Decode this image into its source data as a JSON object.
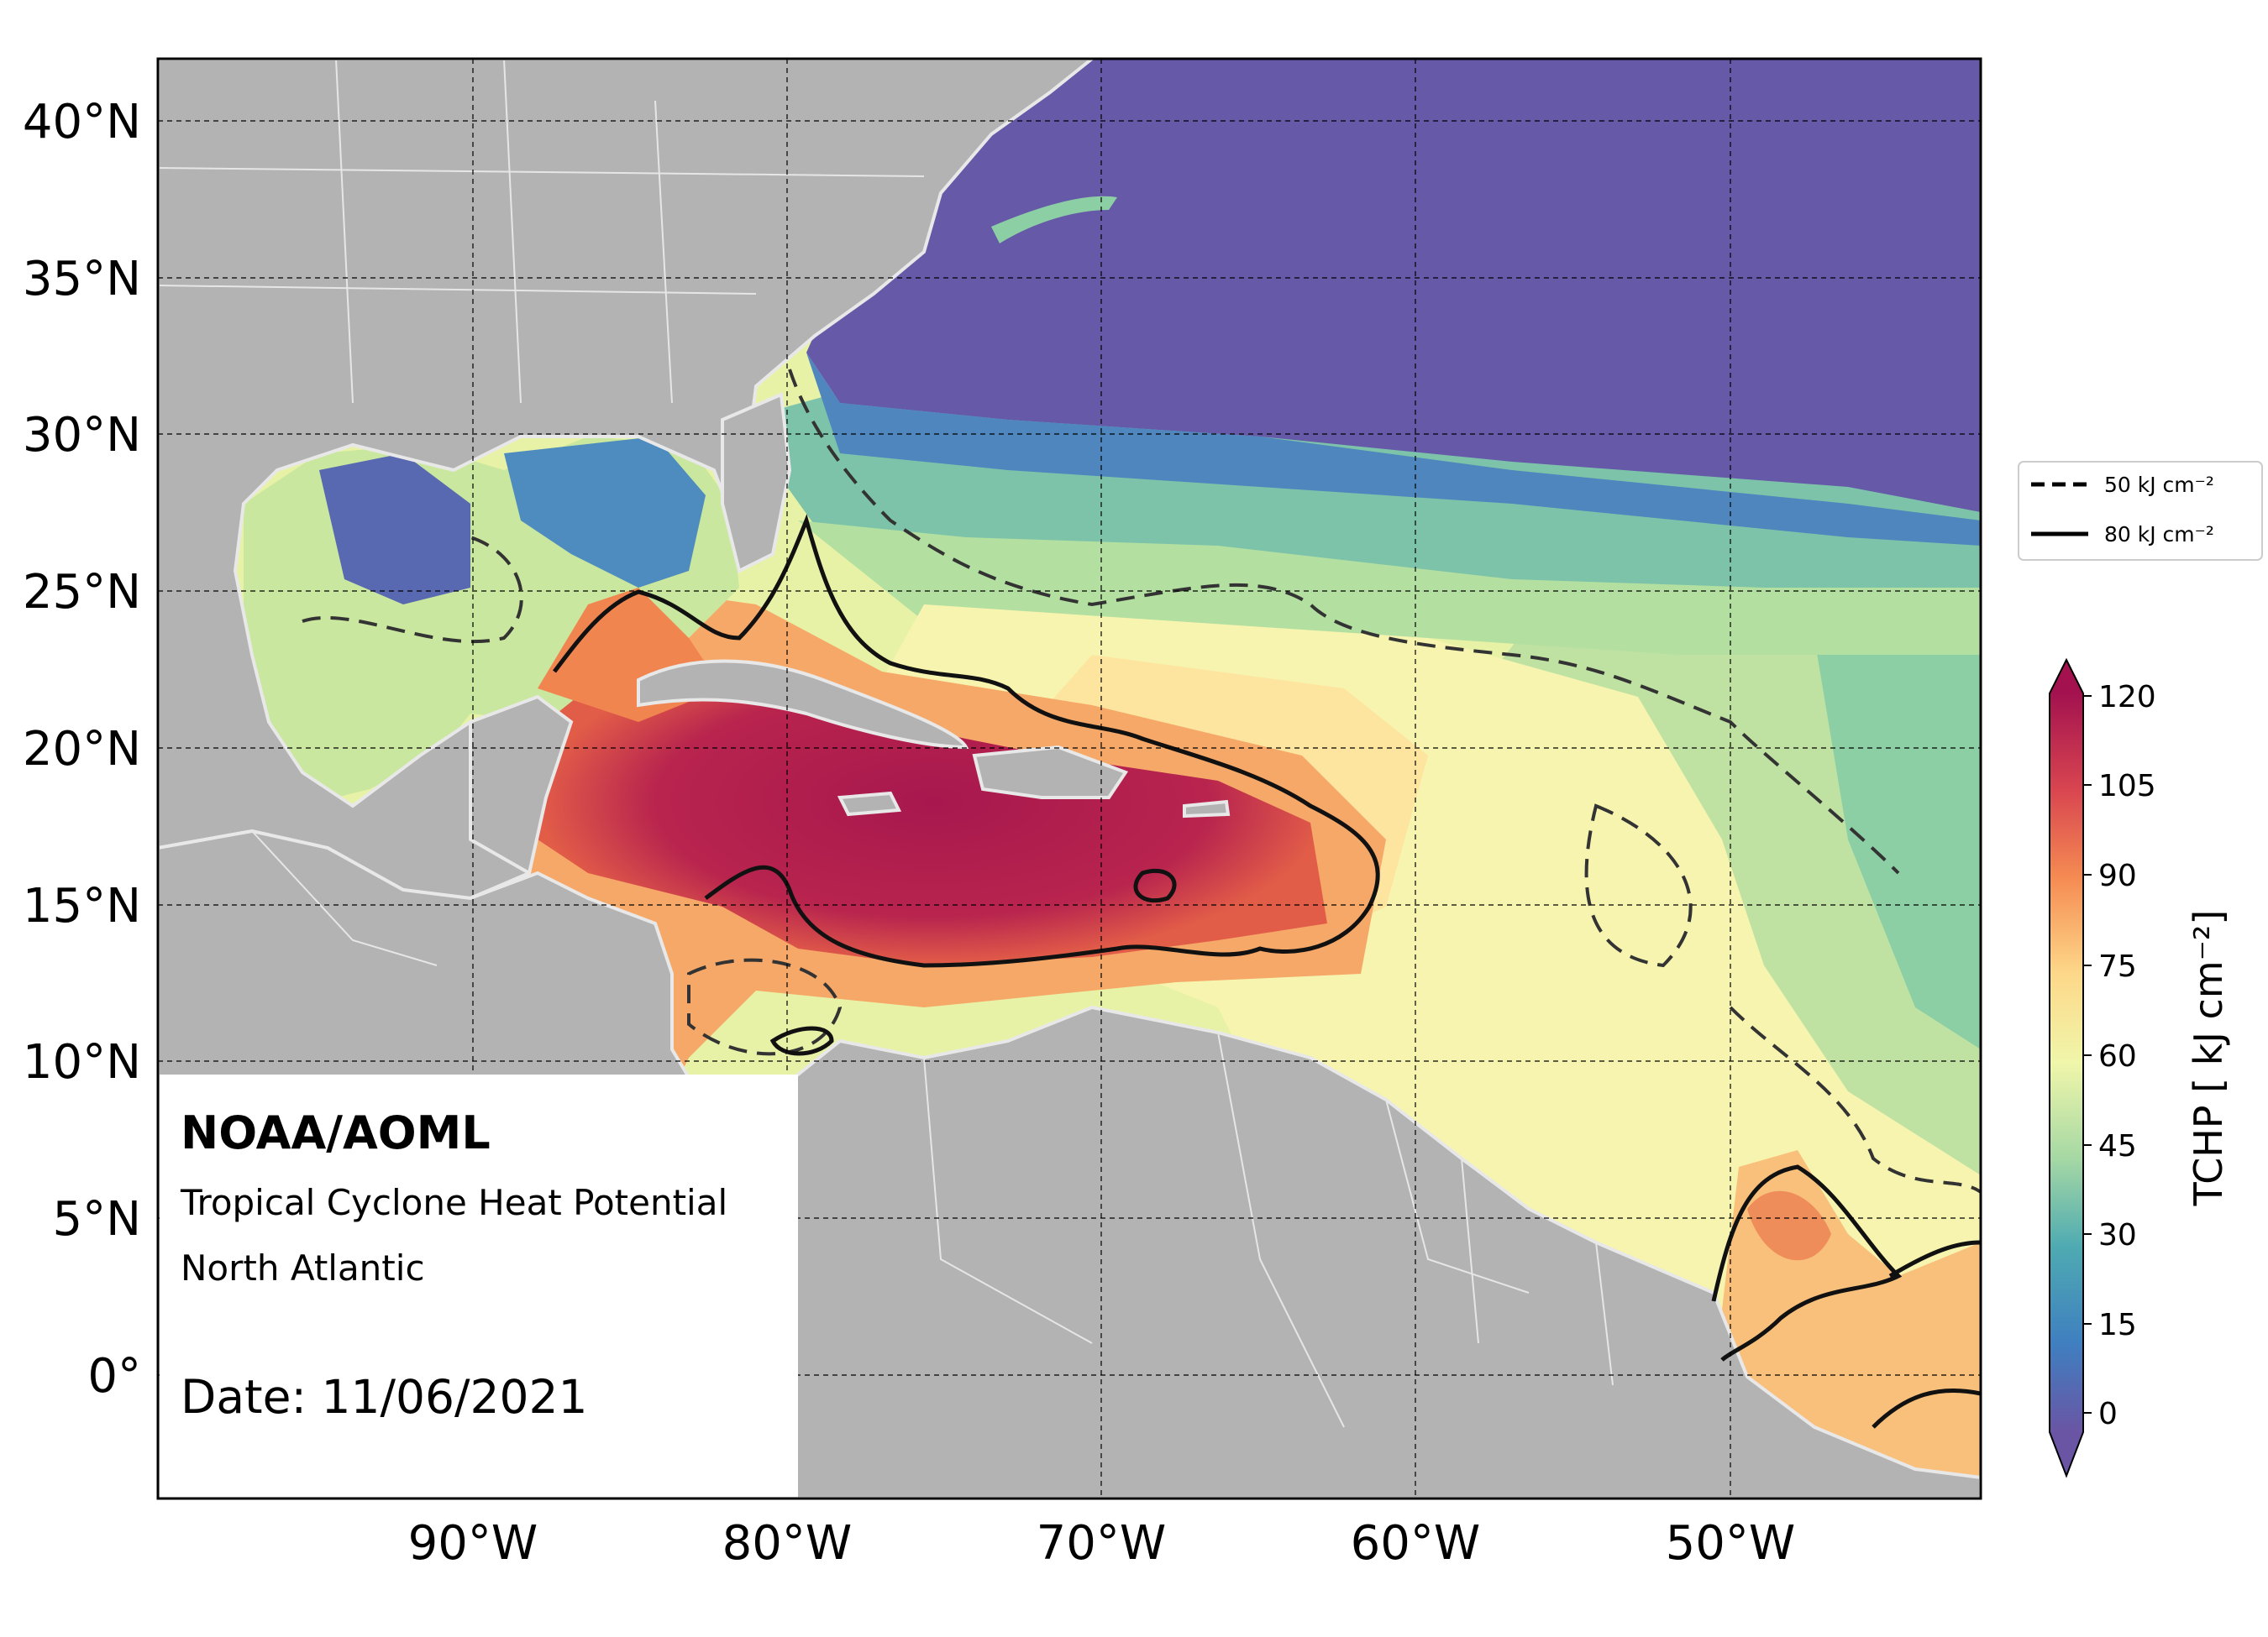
{
  "annotations": {
    "organization": "NOAA/AOML",
    "product": "Tropical Cyclone Heat Potential",
    "region": "North Atlantic",
    "date": "Date: 11/06/2021"
  },
  "axes": {
    "lat_ticks": [
      "40°N",
      "35°N",
      "30°N",
      "25°N",
      "20°N",
      "15°N",
      "10°N",
      "5°N",
      "0°"
    ],
    "lon_ticks": [
      "90°W",
      "80°W",
      "70°W",
      "60°W",
      "50°W"
    ]
  },
  "colorbar": {
    "label": "TCHP [ kJ cm⁻²]",
    "ticks": [
      "120",
      "105",
      "90",
      "75",
      "60",
      "45",
      "30",
      "15",
      "0"
    ]
  },
  "legend": {
    "dashed": "50 kJ cm⁻²",
    "solid": "80 kJ cm⁻²"
  },
  "colors": {
    "land": "#b3b3b3",
    "deep_purple": "#6659a8",
    "high_heat": "#a8184e"
  }
}
